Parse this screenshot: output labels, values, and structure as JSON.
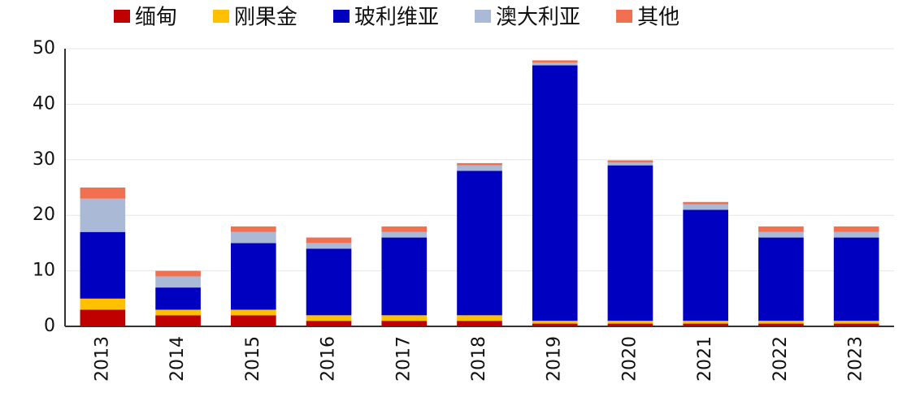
{
  "chart_data": {
    "type": "bar",
    "stacked": true,
    "categories": [
      "2013",
      "2014",
      "2015",
      "2016",
      "2017",
      "2018",
      "2019",
      "2020",
      "2021",
      "2022",
      "2023"
    ],
    "series": [
      {
        "name": "缅甸",
        "color": "#c00000",
        "values": [
          3,
          2,
          2,
          1,
          1,
          1,
          0.5,
          0.5,
          0.5,
          0.5,
          0.5
        ]
      },
      {
        "name": "刚果金",
        "color": "#ffc000",
        "values": [
          2,
          1,
          1,
          1,
          1,
          1,
          0.5,
          0.5,
          0.5,
          0.5,
          0.5
        ]
      },
      {
        "name": "玻利维亚",
        "color": "#0000c0",
        "values": [
          12,
          4,
          12,
          12,
          14,
          26,
          46,
          28,
          20,
          15,
          15
        ]
      },
      {
        "name": "澳大利亚",
        "color": "#a9b9d6",
        "values": [
          6,
          2,
          2,
          1,
          1,
          1,
          0.5,
          0.5,
          1,
          1,
          1
        ]
      },
      {
        "name": "其他",
        "color": "#f07050",
        "values": [
          2,
          1,
          1,
          1,
          1,
          0.4,
          0.4,
          0.4,
          0.4,
          1,
          1
        ]
      }
    ],
    "ylim": [
      0,
      50
    ],
    "yticks": [
      0,
      10,
      20,
      30,
      40,
      50
    ],
    "grid": true
  }
}
